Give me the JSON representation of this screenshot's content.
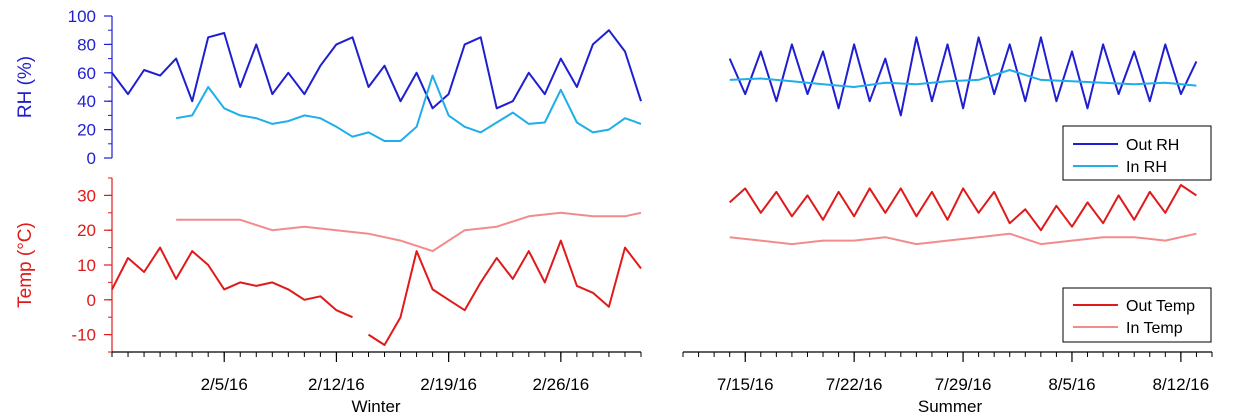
{
  "colors": {
    "out_rh": "#1f1fd1",
    "in_rh": "#1faee8",
    "out_temp": "#e01a1a",
    "in_temp": "#f28c8c",
    "rh_axis": "#1f1fd1",
    "temp_axis": "#e01a1a",
    "time_axis": "#000000"
  },
  "chart_data": {
    "type": "line",
    "title": "",
    "panels": {
      "rh": {
        "ylabel": "RH (%)",
        "ylim": [
          0,
          100
        ],
        "yticks": [
          "0",
          "20",
          "40",
          "60",
          "80",
          "100"
        ]
      },
      "temp": {
        "ylabel": "Temp (°C)",
        "ylim": [
          -15,
          35
        ],
        "yticks": [
          "-10",
          "0",
          "10",
          "20",
          "30"
        ]
      }
    },
    "periods": [
      {
        "name": "Winter",
        "xlim": [
          "2016-01-29",
          "2016-03-02"
        ],
        "xticks": [
          "2/5/16",
          "2/12/16",
          "2/19/16",
          "2/26/16"
        ],
        "series": [
          {
            "name": "Out RH",
            "panel": "rh",
            "x": [
              "2016-01-29",
              "2016-01-30",
              "2016-01-31",
              "2016-02-01",
              "2016-02-02",
              "2016-02-03",
              "2016-02-04",
              "2016-02-05",
              "2016-02-06",
              "2016-02-07",
              "2016-02-08",
              "2016-02-09",
              "2016-02-10",
              "2016-02-11",
              "2016-02-12",
              "2016-02-13",
              "2016-02-14",
              "2016-02-15",
              "2016-02-16",
              "2016-02-17",
              "2016-02-18",
              "2016-02-19",
              "2016-02-20",
              "2016-02-21",
              "2016-02-22",
              "2016-02-23",
              "2016-02-24",
              "2016-02-25",
              "2016-02-26",
              "2016-02-27",
              "2016-02-28",
              "2016-02-29",
              "2016-03-01",
              "2016-03-02"
            ],
            "y": [
              60,
              45,
              62,
              58,
              70,
              40,
              85,
              88,
              50,
              80,
              45,
              60,
              45,
              65,
              80,
              85,
              50,
              65,
              40,
              60,
              35,
              45,
              80,
              85,
              35,
              40,
              60,
              45,
              70,
              50,
              80,
              90,
              75,
              40
            ]
          },
          {
            "name": "In RH",
            "panel": "rh",
            "x": [
              "2016-02-02",
              "2016-02-03",
              "2016-02-04",
              "2016-02-05",
              "2016-02-06",
              "2016-02-07",
              "2016-02-08",
              "2016-02-09",
              "2016-02-10",
              "2016-02-11",
              "2016-02-12",
              "2016-02-13",
              "2016-02-14",
              "2016-02-15",
              "2016-02-16",
              "2016-02-17",
              "2016-02-18",
              "2016-02-19",
              "2016-02-20",
              "2016-02-21",
              "2016-02-22",
              "2016-02-23",
              "2016-02-24",
              "2016-02-25",
              "2016-02-26",
              "2016-02-27",
              "2016-02-28",
              "2016-02-29",
              "2016-03-01",
              "2016-03-02"
            ],
            "y": [
              28,
              30,
              50,
              35,
              30,
              28,
              24,
              26,
              30,
              28,
              22,
              15,
              18,
              12,
              12,
              22,
              58,
              30,
              22,
              18,
              25,
              32,
              24,
              25,
              48,
              25,
              18,
              20,
              28,
              24
            ]
          },
          {
            "name": "Out Temp",
            "panel": "temp",
            "x": [
              "2016-01-29",
              "2016-01-30",
              "2016-01-31",
              "2016-02-01",
              "2016-02-02",
              "2016-02-03",
              "2016-02-04",
              "2016-02-05",
              "2016-02-06",
              "2016-02-07",
              "2016-02-08",
              "2016-02-09",
              "2016-02-10",
              "2016-02-11",
              "2016-02-12",
              "2016-02-13",
              null,
              "2016-02-14",
              "2016-02-15",
              "2016-02-16",
              "2016-02-17",
              "2016-02-18",
              "2016-02-19",
              "2016-02-20",
              "2016-02-21",
              "2016-02-22",
              "2016-02-23",
              "2016-02-24",
              "2016-02-25",
              "2016-02-26",
              "2016-02-27",
              "2016-02-28",
              "2016-02-29",
              "2016-03-01",
              "2016-03-02"
            ],
            "y": [
              3,
              12,
              8,
              15,
              6,
              14,
              10,
              3,
              5,
              4,
              5,
              3,
              0,
              1,
              -3,
              -5,
              null,
              -10,
              -13,
              -5,
              14,
              3,
              0,
              -3,
              5,
              12,
              6,
              14,
              5,
              17,
              4,
              2,
              -2,
              15,
              9
            ]
          },
          {
            "name": "In Temp",
            "panel": "temp",
            "x": [
              "2016-02-02",
              "2016-02-04",
              "2016-02-06",
              "2016-02-08",
              "2016-02-10",
              "2016-02-12",
              "2016-02-14",
              "2016-02-16",
              "2016-02-18",
              "2016-02-20",
              "2016-02-22",
              "2016-02-24",
              "2016-02-26",
              "2016-02-28",
              "2016-03-01",
              "2016-03-02"
            ],
            "y": [
              23,
              23,
              23,
              20,
              21,
              20,
              19,
              17,
              14,
              20,
              21,
              24,
              25,
              24,
              24,
              25
            ]
          }
        ]
      },
      {
        "name": "Summer",
        "xlim": [
          "2016-07-11",
          "2016-08-14"
        ],
        "xticks": [
          "7/15/16",
          "7/22/16",
          "7/29/16",
          "8/5/16",
          "8/12/16"
        ],
        "series": [
          {
            "name": "Out RH",
            "panel": "rh",
            "x": [
              "2016-07-14",
              "2016-07-15",
              "2016-07-16",
              "2016-07-17",
              "2016-07-18",
              "2016-07-19",
              "2016-07-20",
              "2016-07-21",
              "2016-07-22",
              "2016-07-23",
              "2016-07-24",
              "2016-07-25",
              "2016-07-26",
              "2016-07-27",
              "2016-07-28",
              "2016-07-29",
              "2016-07-30",
              "2016-07-31",
              "2016-08-01",
              "2016-08-02",
              "2016-08-03",
              "2016-08-04",
              "2016-08-05",
              "2016-08-06",
              "2016-08-07",
              "2016-08-08",
              "2016-08-09",
              "2016-08-10",
              "2016-08-11",
              "2016-08-12",
              "2016-08-13"
            ],
            "y": [
              70,
              45,
              75,
              40,
              80,
              45,
              75,
              35,
              80,
              40,
              70,
              30,
              85,
              40,
              80,
              35,
              85,
              45,
              80,
              40,
              85,
              40,
              75,
              35,
              80,
              45,
              75,
              40,
              80,
              45,
              68
            ]
          },
          {
            "name": "In RH",
            "panel": "rh",
            "x": [
              "2016-07-14",
              "2016-07-16",
              "2016-07-18",
              "2016-07-20",
              "2016-07-22",
              "2016-07-24",
              "2016-07-26",
              "2016-07-28",
              "2016-07-30",
              "2016-08-01",
              "2016-08-03",
              "2016-08-05",
              "2016-08-07",
              "2016-08-09",
              "2016-08-11",
              "2016-08-13"
            ],
            "y": [
              55,
              56,
              54,
              52,
              50,
              53,
              52,
              54,
              55,
              62,
              55,
              54,
              53,
              52,
              53,
              51
            ]
          },
          {
            "name": "Out Temp",
            "panel": "temp",
            "x": [
              "2016-07-14",
              "2016-07-15",
              "2016-07-16",
              "2016-07-17",
              "2016-07-18",
              "2016-07-19",
              "2016-07-20",
              "2016-07-21",
              "2016-07-22",
              "2016-07-23",
              "2016-07-24",
              "2016-07-25",
              "2016-07-26",
              "2016-07-27",
              "2016-07-28",
              "2016-07-29",
              "2016-07-30",
              "2016-07-31",
              "2016-08-01",
              "2016-08-02",
              "2016-08-03",
              "2016-08-04",
              "2016-08-05",
              "2016-08-06",
              "2016-08-07",
              "2016-08-08",
              "2016-08-09",
              "2016-08-10",
              "2016-08-11",
              "2016-08-12",
              "2016-08-13"
            ],
            "y": [
              28,
              32,
              25,
              31,
              24,
              30,
              23,
              31,
              24,
              32,
              25,
              32,
              24,
              31,
              23,
              32,
              25,
              31,
              22,
              26,
              20,
              27,
              21,
              28,
              22,
              30,
              23,
              31,
              25,
              33,
              30
            ]
          },
          {
            "name": "In Temp",
            "panel": "temp",
            "x": [
              "2016-07-14",
              "2016-07-16",
              "2016-07-18",
              "2016-07-20",
              "2016-07-22",
              "2016-07-24",
              "2016-07-26",
              "2016-07-28",
              "2016-07-30",
              "2016-08-01",
              "2016-08-03",
              "2016-08-05",
              "2016-08-07",
              "2016-08-09",
              "2016-08-11",
              "2016-08-13"
            ],
            "y": [
              18,
              17,
              16,
              17,
              17,
              18,
              16,
              17,
              18,
              19,
              16,
              17,
              18,
              18,
              17,
              19
            ]
          }
        ]
      }
    ],
    "legends": {
      "rh": [
        "Out RH",
        "In RH"
      ],
      "temp": [
        "Out Temp",
        "In Temp"
      ]
    }
  }
}
